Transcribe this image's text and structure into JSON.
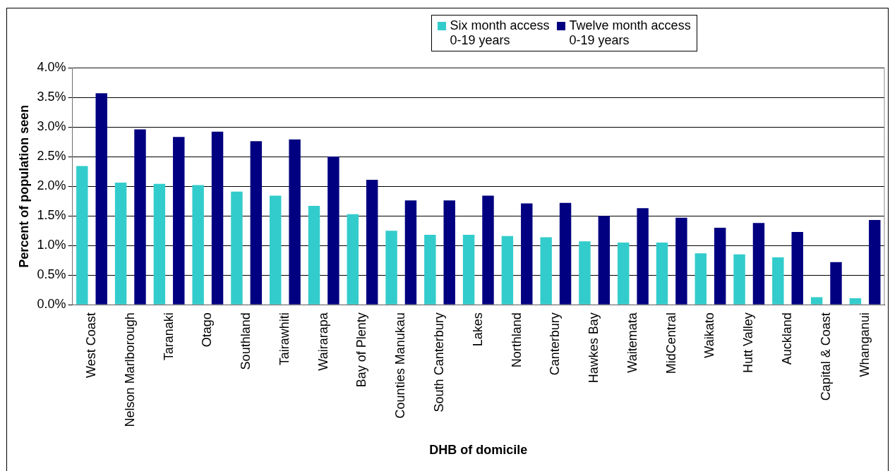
{
  "chart_data": {
    "type": "bar",
    "xlabel": "DHB of domicile",
    "ylabel": "Percent of population seen",
    "categories": [
      "West Coast",
      "Nelson Marlborough",
      "Taranaki",
      "Otago",
      "Southland",
      "Tairawhiti",
      "Wairarapa",
      "Bay of Plenty",
      "Counties Manukau",
      "South Canterbury",
      "Lakes",
      "Northland",
      "Canterbury",
      "Hawkes Bay",
      "Waitemata",
      "MidCentral",
      "Waikato",
      "Hutt Valley",
      "Auckland",
      "Capital & Coast",
      "Whanganui"
    ],
    "series": [
      {
        "name": "Six month access\n0-19 years",
        "color": "#33cccc",
        "values": [
          2.34,
          2.06,
          2.04,
          2.02,
          1.91,
          1.84,
          1.67,
          1.53,
          1.25,
          1.18,
          1.18,
          1.16,
          1.14,
          1.07,
          1.05,
          1.05,
          0.87,
          0.85,
          0.8,
          0.13,
          0.11
        ]
      },
      {
        "name": "Twelve month access\n0-19 years",
        "color": "#000080",
        "values": [
          3.57,
          2.96,
          2.83,
          2.92,
          2.76,
          2.79,
          2.5,
          2.11,
          1.76,
          1.76,
          1.84,
          1.71,
          1.72,
          1.5,
          1.63,
          1.47,
          1.3,
          1.38,
          1.23,
          0.72,
          1.43
        ]
      }
    ],
    "ylim": [
      0,
      4
    ],
    "yticks": [
      {
        "value": 0,
        "label": "0.0%"
      },
      {
        "value": 0.5,
        "label": "0.5%"
      },
      {
        "value": 1,
        "label": "1.0%"
      },
      {
        "value": 1.5,
        "label": "1.5%"
      },
      {
        "value": 2,
        "label": "2.0%"
      },
      {
        "value": 2.5,
        "label": "2.5%"
      },
      {
        "value": 3,
        "label": "3.0%"
      },
      {
        "value": 3.5,
        "label": "3.5%"
      },
      {
        "value": 4,
        "label": "4.0%"
      }
    ],
    "grid": "y",
    "legend": "top"
  }
}
